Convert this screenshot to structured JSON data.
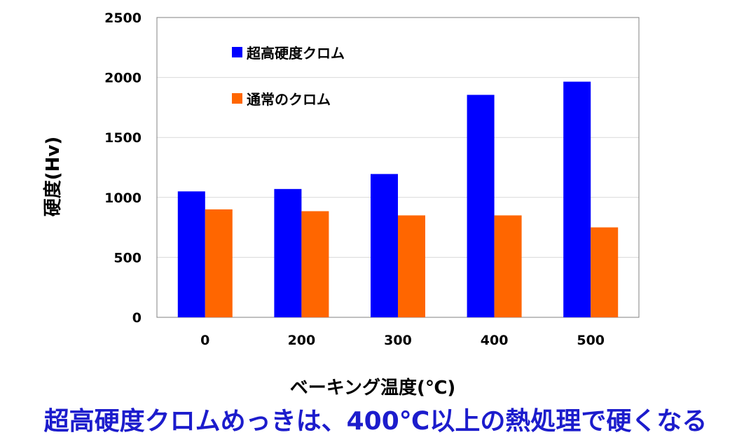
{
  "caption": "超高硬度クロムめっきは、400℃以上の熱処理で硬くなる",
  "chart_data": {
    "type": "bar",
    "categories": [
      "0",
      "200",
      "300",
      "400",
      "500"
    ],
    "series": [
      {
        "name": "超高硬度クロム",
        "color": "#0000ff",
        "values": [
          1050,
          1070,
          1195,
          1855,
          1965
        ]
      },
      {
        "name": "通常のクロム",
        "color": "#ff6600",
        "values": [
          900,
          885,
          850,
          850,
          750
        ]
      }
    ],
    "xlabel": "ベーキング温度(℃)",
    "ylabel": "硬度(Hv)",
    "ylim": [
      0,
      2500
    ],
    "yticks": [
      0,
      500,
      1000,
      1500,
      2000,
      2500
    ],
    "grid": true,
    "legend_position": "top-left"
  }
}
